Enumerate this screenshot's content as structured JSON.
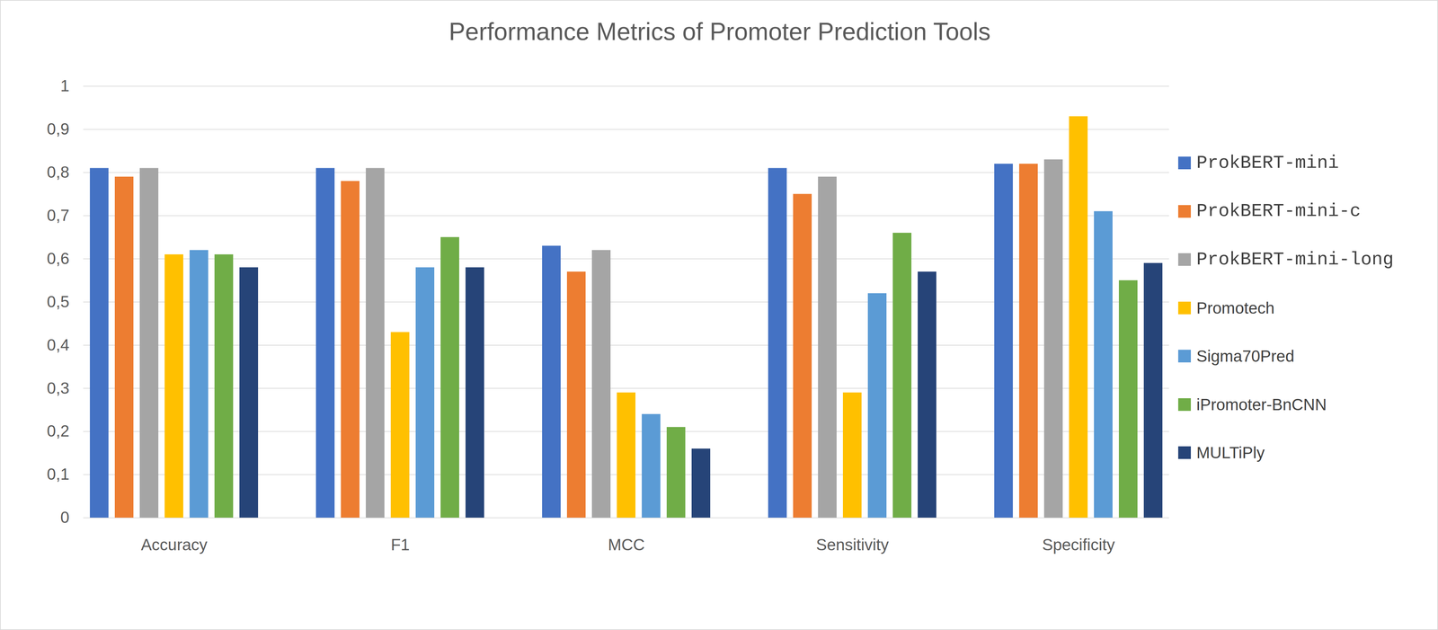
{
  "chart_data": {
    "type": "bar",
    "title": "Performance Metrics of Promoter Prediction Tools",
    "categories": [
      "Accuracy",
      "F1",
      "MCC",
      "Sensitivity",
      "Specificity"
    ],
    "series": [
      {
        "name": "ProkBERT-mini",
        "color": "#4472c4",
        "values": [
          0.81,
          0.81,
          0.63,
          0.81,
          0.82
        ]
      },
      {
        "name": "ProkBERT-mini-c",
        "color": "#ed7d31",
        "values": [
          0.79,
          0.78,
          0.57,
          0.75,
          0.82
        ]
      },
      {
        "name": "ProkBERT-mini-long",
        "color": "#a5a5a5",
        "values": [
          0.81,
          0.81,
          0.62,
          0.79,
          0.83
        ]
      },
      {
        "name": "Promotech",
        "color": "#ffc000",
        "values": [
          0.61,
          0.43,
          0.29,
          0.29,
          0.93
        ]
      },
      {
        "name": "Sigma70Pred",
        "color": "#5b9bd5",
        "values": [
          0.62,
          0.58,
          0.24,
          0.52,
          0.71
        ]
      },
      {
        "name": "iPromoter-BnCNN",
        "color": "#70ad47",
        "values": [
          0.61,
          0.65,
          0.21,
          0.66,
          0.55
        ]
      },
      {
        "name": "MULTiPly",
        "color": "#264478",
        "values": [
          0.58,
          0.58,
          0.16,
          0.57,
          0.59
        ]
      }
    ],
    "ylim": [
      0,
      1
    ],
    "yticks": [
      0,
      {
        "value": 0.1,
        "label": "0,1"
      },
      {
        "value": 0.2,
        "label": "0,2"
      },
      {
        "value": 0.3,
        "label": "0,3"
      },
      {
        "value": 0.4,
        "label": "0,4"
      },
      {
        "value": 0.5,
        "label": "0,5"
      },
      {
        "value": 0.6,
        "label": "0,6"
      },
      {
        "value": 0.7,
        "label": "0,7"
      },
      {
        "value": 0.8,
        "label": "0,8"
      },
      {
        "value": 0.9,
        "label": "0,9"
      },
      1
    ],
    "grid": true,
    "legend": "right"
  }
}
